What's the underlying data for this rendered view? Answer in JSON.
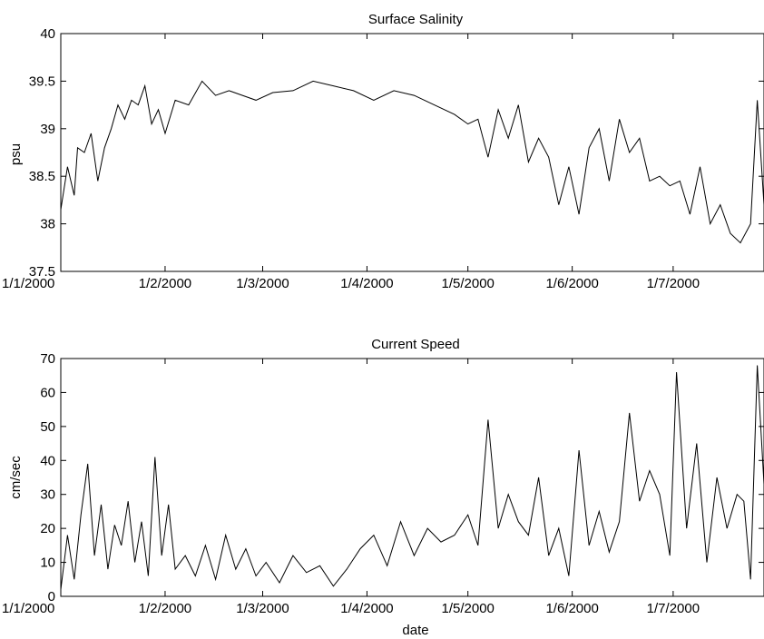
{
  "chart_data": [
    {
      "type": "line",
      "title": "Surface Salinity",
      "xlabel": "",
      "ylabel": "psu",
      "x_ticks": [
        "1/1/2000",
        "1/2/2000",
        "1/3/2000",
        "1/4/2000",
        "1/5/2000",
        "1/6/2000",
        "1/7/2000"
      ],
      "x_range": [
        "2000-01-01",
        "2000-07-28"
      ],
      "ylim": [
        37.5,
        40
      ],
      "y_ticks": [
        "37.5",
        "38",
        "38.5",
        "39",
        "39.5",
        "40"
      ],
      "grid": false,
      "line_color": "#000000",
      "series": [
        {
          "x": [
            "2000-01-01",
            "2000-01-03",
            "2000-01-05",
            "2000-01-06",
            "2000-01-08",
            "2000-01-10",
            "2000-01-12",
            "2000-01-14",
            "2000-01-16",
            "2000-01-18",
            "2000-01-20",
            "2000-01-22",
            "2000-01-24",
            "2000-01-26",
            "2000-01-28",
            "2000-01-30",
            "2000-02-01",
            "2000-02-04",
            "2000-02-08",
            "2000-02-12",
            "2000-02-16",
            "2000-02-20",
            "2000-02-24",
            "2000-02-28",
            "2000-03-04",
            "2000-03-10",
            "2000-03-16",
            "2000-03-22",
            "2000-03-28",
            "2000-04-03",
            "2000-04-09",
            "2000-04-15",
            "2000-04-21",
            "2000-04-27",
            "2000-05-01",
            "2000-05-04",
            "2000-05-07",
            "2000-05-10",
            "2000-05-13",
            "2000-05-16",
            "2000-05-19",
            "2000-05-22",
            "2000-05-25",
            "2000-05-28",
            "2000-05-31",
            "2000-06-03",
            "2000-06-06",
            "2000-06-09",
            "2000-06-12",
            "2000-06-15",
            "2000-06-18",
            "2000-06-21",
            "2000-06-24",
            "2000-06-27",
            "2000-06-30",
            "2000-07-03",
            "2000-07-06",
            "2000-07-09",
            "2000-07-12",
            "2000-07-15",
            "2000-07-18",
            "2000-07-21",
            "2000-07-24",
            "2000-07-26",
            "2000-07-28"
          ],
          "y": [
            38.15,
            38.6,
            38.3,
            38.8,
            38.75,
            38.95,
            38.45,
            38.8,
            39.0,
            39.25,
            39.1,
            39.3,
            39.25,
            39.45,
            39.05,
            39.2,
            38.95,
            39.3,
            39.25,
            39.5,
            39.35,
            39.4,
            39.35,
            39.3,
            39.38,
            39.4,
            39.5,
            39.45,
            39.4,
            39.3,
            39.4,
            39.35,
            39.25,
            39.15,
            39.05,
            39.1,
            38.7,
            39.2,
            38.9,
            39.25,
            38.65,
            38.9,
            38.7,
            38.2,
            38.6,
            38.1,
            38.8,
            39.0,
            38.45,
            39.1,
            38.75,
            38.9,
            38.45,
            38.5,
            38.4,
            38.45,
            38.1,
            38.6,
            38.0,
            38.2,
            37.9,
            37.8,
            38.0,
            39.3,
            38.2
          ]
        }
      ]
    },
    {
      "type": "line",
      "title": "Current Speed",
      "xlabel": "date",
      "ylabel": "cm/sec",
      "x_ticks": [
        "1/1/2000",
        "1/2/2000",
        "1/3/2000",
        "1/4/2000",
        "1/5/2000",
        "1/6/2000",
        "1/7/2000"
      ],
      "x_range": [
        "2000-01-01",
        "2000-07-28"
      ],
      "ylim": [
        0,
        70
      ],
      "y_ticks": [
        "0",
        "10",
        "20",
        "30",
        "40",
        "50",
        "60",
        "70"
      ],
      "grid": false,
      "line_color": "#000000",
      "series": [
        {
          "x": [
            "2000-01-01",
            "2000-01-03",
            "2000-01-05",
            "2000-01-07",
            "2000-01-09",
            "2000-01-11",
            "2000-01-13",
            "2000-01-15",
            "2000-01-17",
            "2000-01-19",
            "2000-01-21",
            "2000-01-23",
            "2000-01-25",
            "2000-01-27",
            "2000-01-29",
            "2000-01-31",
            "2000-02-02",
            "2000-02-04",
            "2000-02-07",
            "2000-02-10",
            "2000-02-13",
            "2000-02-16",
            "2000-02-19",
            "2000-02-22",
            "2000-02-25",
            "2000-02-28",
            "2000-03-02",
            "2000-03-06",
            "2000-03-10",
            "2000-03-14",
            "2000-03-18",
            "2000-03-22",
            "2000-03-26",
            "2000-03-30",
            "2000-04-03",
            "2000-04-07",
            "2000-04-11",
            "2000-04-15",
            "2000-04-19",
            "2000-04-23",
            "2000-04-27",
            "2000-05-01",
            "2000-05-04",
            "2000-05-07",
            "2000-05-10",
            "2000-05-13",
            "2000-05-16",
            "2000-05-19",
            "2000-05-22",
            "2000-05-25",
            "2000-05-28",
            "2000-05-31",
            "2000-06-03",
            "2000-06-06",
            "2000-06-09",
            "2000-06-12",
            "2000-06-15",
            "2000-06-18",
            "2000-06-21",
            "2000-06-24",
            "2000-06-27",
            "2000-06-30",
            "2000-07-02",
            "2000-07-05",
            "2000-07-08",
            "2000-07-11",
            "2000-07-14",
            "2000-07-17",
            "2000-07-20",
            "2000-07-22",
            "2000-07-24",
            "2000-07-26",
            "2000-07-28"
          ],
          "y": [
            2,
            18,
            5,
            24,
            39,
            12,
            27,
            8,
            21,
            15,
            28,
            10,
            22,
            6,
            41,
            12,
            27,
            8,
            12,
            6,
            15,
            5,
            18,
            8,
            14,
            6,
            10,
            4,
            12,
            7,
            9,
            3,
            8,
            14,
            18,
            9,
            22,
            12,
            20,
            16,
            18,
            24,
            15,
            52,
            20,
            30,
            22,
            18,
            35,
            12,
            20,
            6,
            43,
            15,
            25,
            13,
            22,
            54,
            28,
            37,
            30,
            12,
            66,
            20,
            45,
            10,
            35,
            20,
            30,
            28,
            5,
            68,
            33
          ]
        }
      ]
    }
  ]
}
